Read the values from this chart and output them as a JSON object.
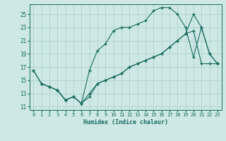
{
  "xlabel": "Humidex (Indice chaleur)",
  "background_color": "#cde8e5",
  "line_color": "#1a6b60",
  "grid_color": "#aacfcc",
  "xlim": [
    -0.5,
    23.5
  ],
  "ylim": [
    10.5,
    26.5
  ],
  "xticks": [
    0,
    1,
    2,
    3,
    4,
    5,
    6,
    7,
    8,
    9,
    10,
    11,
    12,
    13,
    14,
    15,
    16,
    17,
    18,
    19,
    20,
    21,
    22,
    23
  ],
  "yticks": [
    11,
    13,
    15,
    17,
    19,
    21,
    23,
    25
  ],
  "line1_x": [
    0,
    1,
    2,
    3,
    4,
    5,
    6,
    7,
    8,
    9,
    10,
    11,
    12,
    13,
    14,
    15,
    16,
    17,
    18,
    19,
    20,
    21,
    22,
    23
  ],
  "line1_y": [
    16.5,
    14.5,
    14.0,
    13.5,
    12.0,
    12.5,
    11.5,
    16.5,
    19.5,
    20.5,
    22.5,
    23.0,
    23.0,
    23.5,
    24.0,
    25.5,
    26.0,
    26.0,
    25.0,
    23.0,
    18.5,
    23.0,
    19.0,
    17.5
  ],
  "line2_x": [
    0,
    1,
    2,
    3,
    4,
    5,
    6,
    7,
    8,
    9,
    10,
    11,
    12,
    13,
    14,
    15,
    16,
    17,
    18,
    19,
    20,
    21,
    22,
    23
  ],
  "line2_y": [
    16.5,
    14.5,
    14.0,
    13.5,
    12.0,
    12.5,
    11.5,
    13.0,
    14.5,
    15.0,
    15.5,
    16.0,
    17.0,
    17.5,
    18.0,
    18.5,
    19.0,
    20.0,
    21.0,
    22.0,
    25.0,
    23.0,
    19.0,
    17.5
  ],
  "line3_x": [
    1,
    2,
    3,
    4,
    5,
    6,
    7,
    8,
    9,
    10,
    11,
    12,
    13,
    14,
    15,
    16,
    17,
    18,
    19,
    20,
    21,
    22,
    23
  ],
  "line3_y": [
    14.5,
    14.0,
    13.5,
    12.0,
    12.5,
    11.5,
    12.5,
    14.5,
    15.0,
    15.5,
    16.0,
    17.0,
    17.5,
    18.0,
    18.5,
    19.0,
    20.0,
    21.0,
    22.0,
    22.5,
    17.5,
    17.5,
    17.5
  ]
}
